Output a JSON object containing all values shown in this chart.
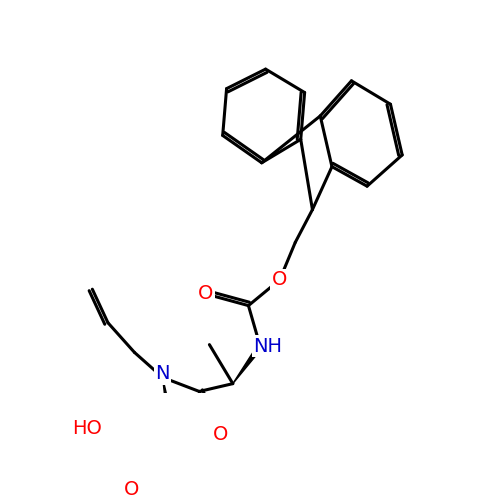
{
  "background_color": "#ffffff",
  "bond_color": "#000000",
  "bond_width": 2.2,
  "atom_colors": {
    "O": "#ff0000",
    "N": "#0000cc"
  },
  "font_size_atoms": 14
}
